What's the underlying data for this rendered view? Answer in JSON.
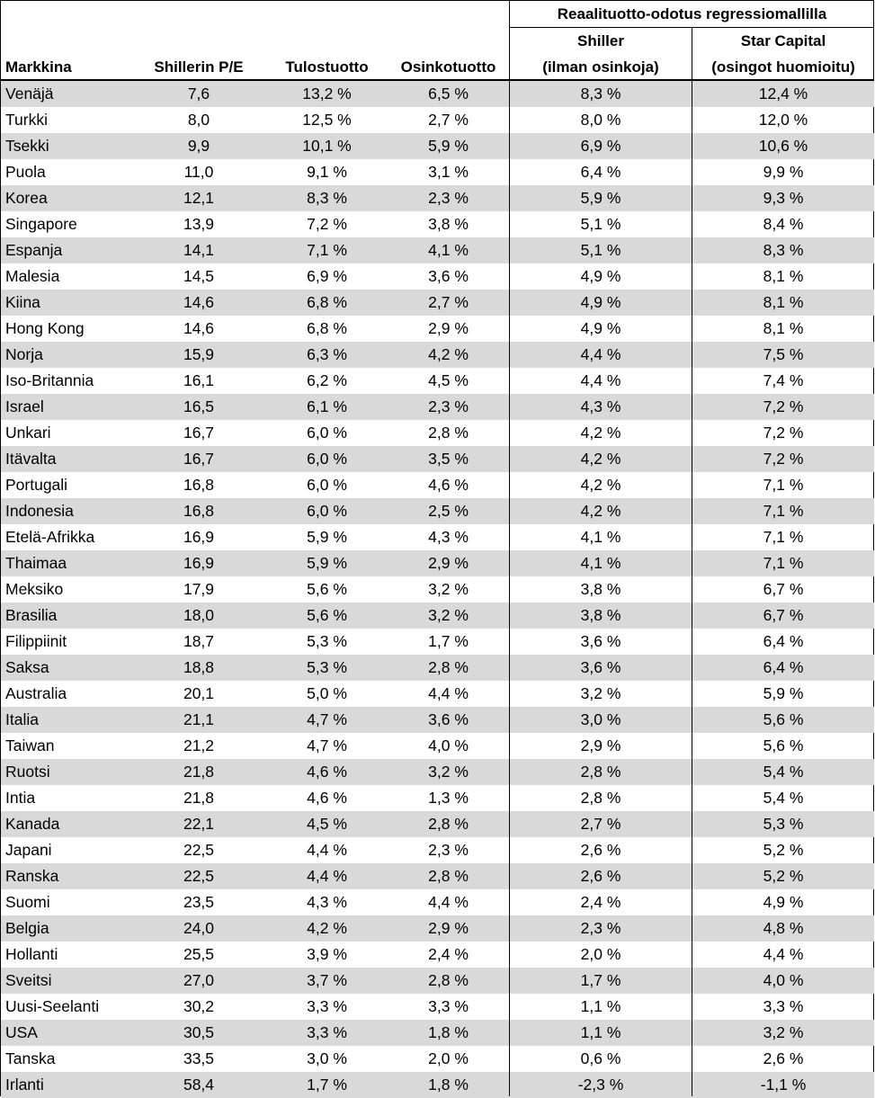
{
  "header": {
    "group_title": "Reaalituotto-odotus regressiomallilla",
    "col_market": "Markkina",
    "col_pe": "Shillerin P/E",
    "col_earnings_yield": "Tulostuotto",
    "col_dividend_yield": "Osinkotuotto",
    "col_shiller_line1": "Shiller",
    "col_shiller_line2": "(ilman osinkoja)",
    "col_starcapital_line1": "Star Capital",
    "col_starcapital_line2": "(osingot huomioitu)"
  },
  "rows": [
    {
      "market": "Venäjä",
      "pe": "7,6",
      "earnings_yield": "13,2 %",
      "dividend_yield": "6,5 %",
      "shiller": "8,3 %",
      "star_capital": "12,4 %"
    },
    {
      "market": "Turkki",
      "pe": "8,0",
      "earnings_yield": "12,5 %",
      "dividend_yield": "2,7 %",
      "shiller": "8,0 %",
      "star_capital": "12,0 %"
    },
    {
      "market": "Tsekki",
      "pe": "9,9",
      "earnings_yield": "10,1 %",
      "dividend_yield": "5,9 %",
      "shiller": "6,9 %",
      "star_capital": "10,6 %"
    },
    {
      "market": "Puola",
      "pe": "11,0",
      "earnings_yield": "9,1 %",
      "dividend_yield": "3,1 %",
      "shiller": "6,4 %",
      "star_capital": "9,9 %"
    },
    {
      "market": "Korea",
      "pe": "12,1",
      "earnings_yield": "8,3 %",
      "dividend_yield": "2,3 %",
      "shiller": "5,9 %",
      "star_capital": "9,3 %"
    },
    {
      "market": "Singapore",
      "pe": "13,9",
      "earnings_yield": "7,2 %",
      "dividend_yield": "3,8 %",
      "shiller": "5,1 %",
      "star_capital": "8,4 %"
    },
    {
      "market": "Espanja",
      "pe": "14,1",
      "earnings_yield": "7,1 %",
      "dividend_yield": "4,1 %",
      "shiller": "5,1 %",
      "star_capital": "8,3 %"
    },
    {
      "market": "Malesia",
      "pe": "14,5",
      "earnings_yield": "6,9 %",
      "dividend_yield": "3,6 %",
      "shiller": "4,9 %",
      "star_capital": "8,1 %"
    },
    {
      "market": "Kiina",
      "pe": "14,6",
      "earnings_yield": "6,8 %",
      "dividend_yield": "2,7 %",
      "shiller": "4,9 %",
      "star_capital": "8,1 %"
    },
    {
      "market": "Hong Kong",
      "pe": "14,6",
      "earnings_yield": "6,8 %",
      "dividend_yield": "2,9 %",
      "shiller": "4,9 %",
      "star_capital": "8,1 %"
    },
    {
      "market": "Norja",
      "pe": "15,9",
      "earnings_yield": "6,3 %",
      "dividend_yield": "4,2 %",
      "shiller": "4,4 %",
      "star_capital": "7,5 %"
    },
    {
      "market": "Iso-Britannia",
      "pe": "16,1",
      "earnings_yield": "6,2 %",
      "dividend_yield": "4,5 %",
      "shiller": "4,4 %",
      "star_capital": "7,4 %"
    },
    {
      "market": "Israel",
      "pe": "16,5",
      "earnings_yield": "6,1 %",
      "dividend_yield": "2,3 %",
      "shiller": "4,3 %",
      "star_capital": "7,2 %"
    },
    {
      "market": "Unkari",
      "pe": "16,7",
      "earnings_yield": "6,0 %",
      "dividend_yield": "2,8 %",
      "shiller": "4,2 %",
      "star_capital": "7,2 %"
    },
    {
      "market": "Itävalta",
      "pe": "16,7",
      "earnings_yield": "6,0 %",
      "dividend_yield": "3,5 %",
      "shiller": "4,2 %",
      "star_capital": "7,2 %"
    },
    {
      "market": "Portugali",
      "pe": "16,8",
      "earnings_yield": "6,0 %",
      "dividend_yield": "4,6 %",
      "shiller": "4,2 %",
      "star_capital": "7,1 %"
    },
    {
      "market": "Indonesia",
      "pe": "16,8",
      "earnings_yield": "6,0 %",
      "dividend_yield": "2,5 %",
      "shiller": "4,2 %",
      "star_capital": "7,1 %"
    },
    {
      "market": "Etelä-Afrikka",
      "pe": "16,9",
      "earnings_yield": "5,9 %",
      "dividend_yield": "4,3 %",
      "shiller": "4,1 %",
      "star_capital": "7,1 %"
    },
    {
      "market": "Thaimaa",
      "pe": "16,9",
      "earnings_yield": "5,9 %",
      "dividend_yield": "2,9 %",
      "shiller": "4,1 %",
      "star_capital": "7,1 %"
    },
    {
      "market": "Meksiko",
      "pe": "17,9",
      "earnings_yield": "5,6 %",
      "dividend_yield": "3,2 %",
      "shiller": "3,8 %",
      "star_capital": "6,7 %"
    },
    {
      "market": "Brasilia",
      "pe": "18,0",
      "earnings_yield": "5,6 %",
      "dividend_yield": "3,2 %",
      "shiller": "3,8 %",
      "star_capital": "6,7 %"
    },
    {
      "market": "Filippiinit",
      "pe": "18,7",
      "earnings_yield": "5,3 %",
      "dividend_yield": "1,7 %",
      "shiller": "3,6 %",
      "star_capital": "6,4 %"
    },
    {
      "market": "Saksa",
      "pe": "18,8",
      "earnings_yield": "5,3 %",
      "dividend_yield": "2,8 %",
      "shiller": "3,6 %",
      "star_capital": "6,4 %"
    },
    {
      "market": "Australia",
      "pe": "20,1",
      "earnings_yield": "5,0 %",
      "dividend_yield": "4,4 %",
      "shiller": "3,2 %",
      "star_capital": "5,9 %"
    },
    {
      "market": "Italia",
      "pe": "21,1",
      "earnings_yield": "4,7 %",
      "dividend_yield": "3,6 %",
      "shiller": "3,0 %",
      "star_capital": "5,6 %"
    },
    {
      "market": "Taiwan",
      "pe": "21,2",
      "earnings_yield": "4,7 %",
      "dividend_yield": "4,0 %",
      "shiller": "2,9 %",
      "star_capital": "5,6 %"
    },
    {
      "market": "Ruotsi",
      "pe": "21,8",
      "earnings_yield": "4,6 %",
      "dividend_yield": "3,2 %",
      "shiller": "2,8 %",
      "star_capital": "5,4 %"
    },
    {
      "market": "Intia",
      "pe": "21,8",
      "earnings_yield": "4,6 %",
      "dividend_yield": "1,3 %",
      "shiller": "2,8 %",
      "star_capital": "5,4 %"
    },
    {
      "market": "Kanada",
      "pe": "22,1",
      "earnings_yield": "4,5 %",
      "dividend_yield": "2,8 %",
      "shiller": "2,7 %",
      "star_capital": "5,3 %"
    },
    {
      "market": "Japani",
      "pe": "22,5",
      "earnings_yield": "4,4 %",
      "dividend_yield": "2,3 %",
      "shiller": "2,6 %",
      "star_capital": "5,2 %"
    },
    {
      "market": "Ranska",
      "pe": "22,5",
      "earnings_yield": "4,4 %",
      "dividend_yield": "2,8 %",
      "shiller": "2,6 %",
      "star_capital": "5,2 %"
    },
    {
      "market": "Suomi",
      "pe": "23,5",
      "earnings_yield": "4,3 %",
      "dividend_yield": "4,4 %",
      "shiller": "2,4 %",
      "star_capital": "4,9 %"
    },
    {
      "market": "Belgia",
      "pe": "24,0",
      "earnings_yield": "4,2 %",
      "dividend_yield": "2,9 %",
      "shiller": "2,3 %",
      "star_capital": "4,8 %"
    },
    {
      "market": "Hollanti",
      "pe": "25,5",
      "earnings_yield": "3,9 %",
      "dividend_yield": "2,4 %",
      "shiller": "2,0 %",
      "star_capital": "4,4 %"
    },
    {
      "market": "Sveitsi",
      "pe": "27,0",
      "earnings_yield": "3,7 %",
      "dividend_yield": "2,8 %",
      "shiller": "1,7 %",
      "star_capital": "4,0 %"
    },
    {
      "market": "Uusi-Seelanti",
      "pe": "30,2",
      "earnings_yield": "3,3 %",
      "dividend_yield": "3,3 %",
      "shiller": "1,1 %",
      "star_capital": "3,3 %"
    },
    {
      "market": "USA",
      "pe": "30,5",
      "earnings_yield": "3,3 %",
      "dividend_yield": "1,8 %",
      "shiller": "1,1 %",
      "star_capital": "3,2 %"
    },
    {
      "market": "Tanska",
      "pe": "33,5",
      "earnings_yield": "3,0 %",
      "dividend_yield": "2,0 %",
      "shiller": "0,6 %",
      "star_capital": "2,6 %"
    },
    {
      "market": "Irlanti",
      "pe": "58,4",
      "earnings_yield": "1,7 %",
      "dividend_yield": "1,8 %",
      "shiller": "-2,3 %",
      "star_capital": "-1,1 %"
    }
  ],
  "colors": {
    "row_shade": "#d9d9d9",
    "row_plain": "#ffffff",
    "border": "#000000"
  }
}
